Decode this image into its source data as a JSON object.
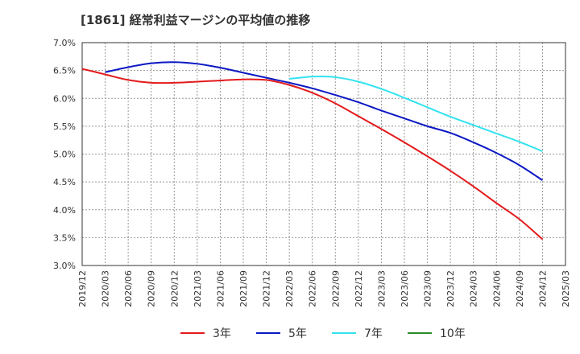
{
  "title": "[1861]  経常利益マージンの平均値の推移",
  "chart_data": {
    "type": "line",
    "y_axis": {
      "min": 3.0,
      "max": 7.0,
      "step": 0.5,
      "tick_labels": [
        "3.0%",
        "3.5%",
        "4.0%",
        "4.5%",
        "5.0%",
        "5.5%",
        "6.0%",
        "6.5%",
        "7.0%"
      ]
    },
    "x_axis": {
      "tick_labels": [
        "2019/12",
        "2020/03",
        "2020/06",
        "2020/09",
        "2020/12",
        "2021/03",
        "2021/06",
        "2021/09",
        "2021/12",
        "2022/03",
        "2022/06",
        "2022/09",
        "2022/12",
        "2023/03",
        "2023/06",
        "2023/09",
        "2023/12",
        "2024/03",
        "2024/06",
        "2024/09",
        "2024/12",
        "2025/03"
      ]
    },
    "grid": true,
    "legend_position": "bottom",
    "series": [
      {
        "name": "3年",
        "color": "#e31a1c",
        "x": [
          "2019/12",
          "2020/03",
          "2020/06",
          "2020/09",
          "2020/12",
          "2021/03",
          "2021/06",
          "2021/09",
          "2021/12",
          "2022/03",
          "2022/06",
          "2022/09",
          "2022/12",
          "2023/03",
          "2023/06",
          "2023/09",
          "2023/12",
          "2024/03",
          "2024/06",
          "2024/09",
          "2024/12"
        ],
        "values": [
          6.53,
          6.43,
          6.33,
          6.28,
          6.28,
          6.3,
          6.32,
          6.34,
          6.33,
          6.24,
          6.1,
          5.91,
          5.68,
          5.45,
          5.21,
          4.96,
          4.7,
          4.42,
          4.12,
          3.83,
          3.47
        ]
      },
      {
        "name": "5年",
        "color": "#0b18c4",
        "x": [
          "2020/03",
          "2020/06",
          "2020/09",
          "2020/12",
          "2021/03",
          "2021/06",
          "2021/09",
          "2021/12",
          "2022/03",
          "2022/06",
          "2022/09",
          "2022/12",
          "2023/03",
          "2023/06",
          "2023/09",
          "2023/12",
          "2024/03",
          "2024/06",
          "2024/09",
          "2024/12"
        ],
        "values": [
          6.47,
          6.56,
          6.63,
          6.65,
          6.62,
          6.55,
          6.46,
          6.37,
          6.28,
          6.18,
          6.06,
          5.93,
          5.78,
          5.64,
          5.5,
          5.38,
          5.21,
          5.02,
          4.8,
          4.53
        ]
      },
      {
        "name": "7年",
        "color": "#33e3f0",
        "x": [
          "2022/03",
          "2022/06",
          "2022/09",
          "2022/12",
          "2023/03",
          "2023/06",
          "2023/09",
          "2023/12",
          "2024/03",
          "2024/06",
          "2024/09",
          "2024/12"
        ],
        "values": [
          6.35,
          6.39,
          6.38,
          6.3,
          6.17,
          6.01,
          5.84,
          5.67,
          5.52,
          5.37,
          5.22,
          5.05
        ]
      },
      {
        "name": "10年",
        "color": "#2a8c2a",
        "x": [],
        "values": []
      }
    ]
  }
}
